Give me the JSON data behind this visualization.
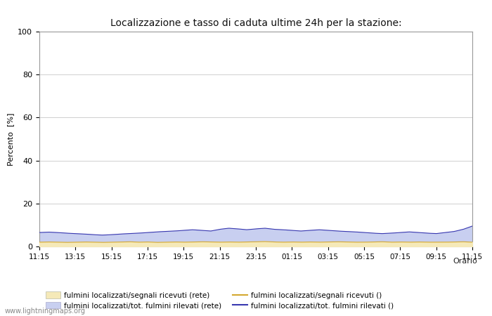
{
  "title": "Localizzazione e tasso di caduta ultime 24h per la stazione:",
  "ylabel": "Percento  [%]",
  "xlabel": "Orario",
  "xlim": [
    0,
    48
  ],
  "ylim": [
    0,
    100
  ],
  "yticks": [
    0,
    20,
    40,
    60,
    80,
    100
  ],
  "xtick_labels": [
    "11:15",
    "13:15",
    "15:15",
    "17:15",
    "19:15",
    "21:15",
    "23:15",
    "01:15",
    "03:15",
    "05:15",
    "07:15",
    "09:15",
    "11:15"
  ],
  "xtick_positions": [
    0,
    4,
    8,
    12,
    16,
    20,
    24,
    28,
    32,
    36,
    40,
    44,
    48
  ],
  "fill_color_1": "#f5e9b8",
  "fill_color_2": "#c8cff0",
  "line_color_1": "#d4a830",
  "line_color_2": "#3838b0",
  "background_color": "#ffffff",
  "plot_bg_color": "#ffffff",
  "grid_color": "#c8c8c8",
  "watermark": "www.lightningmaps.org",
  "legend_items": [
    {
      "label": "fulmini localizzati/segnali ricevuti (rete)",
      "type": "fill",
      "color": "#f5e9b8"
    },
    {
      "label": "fulmini localizzati/segnali ricevuti ()",
      "type": "line",
      "color": "#d4a830"
    },
    {
      "label": "fulmini localizzati/tot. fulmini rilevati (rete)",
      "type": "fill",
      "color": "#c8cff0"
    },
    {
      "label": "fulmini localizzati/tot. fulmini rilevati ()",
      "type": "line",
      "color": "#3838b0"
    }
  ],
  "data_fill1": [
    2.0,
    2.1,
    2.0,
    1.9,
    2.0,
    2.1,
    2.0,
    1.9,
    2.0,
    2.1,
    2.2,
    2.0,
    2.1,
    1.9,
    2.0,
    2.1,
    2.0,
    2.1,
    2.2,
    2.1,
    2.0,
    2.1,
    2.0,
    2.1,
    2.2,
    2.3,
    2.1,
    2.0,
    2.1,
    2.0,
    2.1,
    2.0,
    2.1,
    2.2,
    2.1,
    2.0,
    2.0,
    2.1,
    2.2,
    2.0,
    2.1,
    2.0,
    2.1,
    2.0,
    2.0,
    2.0,
    2.1,
    2.2,
    2.0
  ],
  "data_fill2": [
    6.5,
    6.7,
    6.5,
    6.2,
    6.0,
    5.8,
    5.5,
    5.3,
    5.5,
    5.8,
    6.0,
    6.2,
    6.5,
    6.8,
    7.0,
    7.2,
    7.5,
    7.8,
    7.5,
    7.2,
    8.0,
    8.5,
    8.2,
    7.8,
    8.2,
    8.5,
    8.0,
    7.8,
    7.5,
    7.2,
    7.5,
    7.8,
    7.5,
    7.2,
    7.0,
    6.8,
    6.5,
    6.2,
    6.0,
    6.2,
    6.5,
    6.8,
    6.5,
    6.2,
    6.0,
    6.5,
    7.0,
    8.0,
    9.5
  ]
}
